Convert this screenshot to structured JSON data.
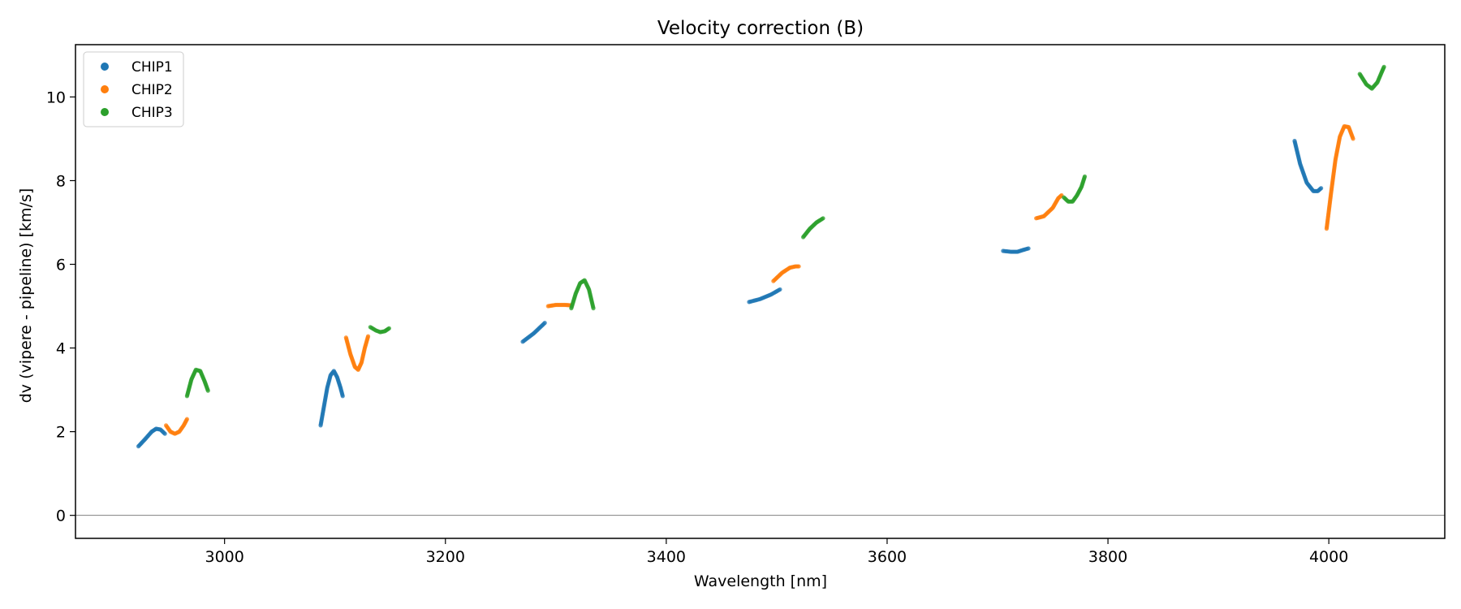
{
  "chart_data": {
    "type": "scatter",
    "title": "Velocity correction (B)",
    "xlabel": "Wavelength [nm]",
    "ylabel": "dv (vipere - pipeline) [km/s]",
    "xlim": [
      2865,
      4105
    ],
    "ylim": [
      -0.55,
      11.25
    ],
    "xticks": [
      3000,
      3200,
      3400,
      3600,
      3800,
      4000
    ],
    "yticks": [
      0,
      2,
      4,
      6,
      8,
      10
    ],
    "hline": 0,
    "legend_position": "upper-left",
    "series": [
      {
        "name": "CHIP1",
        "color": "#1f77b4",
        "segments": [
          {
            "points": [
              [
                2922,
                1.65
              ],
              [
                2928,
                1.82
              ],
              [
                2934,
                2.0
              ],
              [
                2938,
                2.07
              ],
              [
                2942,
                2.05
              ],
              [
                2946,
                1.95
              ]
            ]
          },
          {
            "points": [
              [
                3087,
                2.15
              ],
              [
                3090,
                2.6
              ],
              [
                3093,
                3.05
              ],
              [
                3096,
                3.35
              ],
              [
                3099,
                3.45
              ],
              [
                3102,
                3.3
              ],
              [
                3105,
                3.05
              ],
              [
                3107,
                2.85
              ]
            ]
          },
          {
            "points": [
              [
                3270,
                4.15
              ],
              [
                3280,
                4.35
              ],
              [
                3290,
                4.6
              ]
            ]
          },
          {
            "points": [
              [
                3475,
                5.1
              ],
              [
                3485,
                5.17
              ],
              [
                3495,
                5.28
              ],
              [
                3503,
                5.4
              ]
            ]
          },
          {
            "points": [
              [
                3705,
                6.32
              ],
              [
                3712,
                6.3
              ],
              [
                3718,
                6.3
              ],
              [
                3724,
                6.35
              ],
              [
                3728,
                6.38
              ]
            ]
          },
          {
            "points": [
              [
                3969,
                8.95
              ],
              [
                3974,
                8.4
              ],
              [
                3980,
                7.95
              ],
              [
                3986,
                7.75
              ],
              [
                3990,
                7.75
              ],
              [
                3993,
                7.82
              ]
            ]
          }
        ]
      },
      {
        "name": "CHIP2",
        "color": "#ff7f0e",
        "segments": [
          {
            "points": [
              [
                2947,
                2.15
              ],
              [
                2951,
                2.0
              ],
              [
                2955,
                1.95
              ],
              [
                2959,
                2.0
              ],
              [
                2963,
                2.15
              ],
              [
                2966,
                2.3
              ]
            ]
          },
          {
            "points": [
              [
                3110,
                4.25
              ],
              [
                3114,
                3.85
              ],
              [
                3118,
                3.55
              ],
              [
                3121,
                3.48
              ],
              [
                3124,
                3.65
              ],
              [
                3127,
                4.0
              ],
              [
                3130,
                4.28
              ]
            ]
          },
          {
            "points": [
              [
                3293,
                5.0
              ],
              [
                3300,
                5.03
              ],
              [
                3308,
                5.03
              ],
              [
                3314,
                5.02
              ]
            ]
          },
          {
            "points": [
              [
                3497,
                5.6
              ],
              [
                3505,
                5.8
              ],
              [
                3512,
                5.92
              ],
              [
                3517,
                5.95
              ],
              [
                3520,
                5.95
              ]
            ]
          },
          {
            "points": [
              [
                3735,
                7.1
              ],
              [
                3742,
                7.15
              ],
              [
                3750,
                7.35
              ],
              [
                3755,
                7.58
              ],
              [
                3758,
                7.65
              ]
            ]
          },
          {
            "points": [
              [
                3998,
                6.85
              ],
              [
                4002,
                7.7
              ],
              [
                4006,
                8.5
              ],
              [
                4010,
                9.05
              ],
              [
                4014,
                9.3
              ],
              [
                4018,
                9.28
              ],
              [
                4022,
                9.0
              ]
            ]
          }
        ]
      },
      {
        "name": "CHIP3",
        "color": "#2ca02c",
        "segments": [
          {
            "points": [
              [
                2966,
                2.85
              ],
              [
                2970,
                3.25
              ],
              [
                2974,
                3.48
              ],
              [
                2978,
                3.45
              ],
              [
                2982,
                3.2
              ],
              [
                2985,
                2.98
              ]
            ]
          },
          {
            "points": [
              [
                3132,
                4.5
              ],
              [
                3137,
                4.42
              ],
              [
                3141,
                4.38
              ],
              [
                3145,
                4.4
              ],
              [
                3149,
                4.47
              ]
            ]
          },
          {
            "points": [
              [
                3314,
                4.95
              ],
              [
                3318,
                5.3
              ],
              [
                3322,
                5.55
              ],
              [
                3326,
                5.62
              ],
              [
                3330,
                5.4
              ],
              [
                3334,
                4.95
              ]
            ]
          },
          {
            "points": [
              [
                3524,
                6.65
              ],
              [
                3530,
                6.85
              ],
              [
                3536,
                7.0
              ],
              [
                3542,
                7.1
              ]
            ]
          },
          {
            "points": [
              [
                3760,
                7.6
              ],
              [
                3764,
                7.5
              ],
              [
                3768,
                7.5
              ],
              [
                3772,
                7.65
              ],
              [
                3776,
                7.85
              ],
              [
                3779,
                8.1
              ]
            ]
          },
          {
            "points": [
              [
                4028,
                10.55
              ],
              [
                4034,
                10.3
              ],
              [
                4039,
                10.2
              ],
              [
                4044,
                10.35
              ],
              [
                4048,
                10.6
              ],
              [
                4050,
                10.72
              ]
            ]
          }
        ]
      }
    ]
  }
}
